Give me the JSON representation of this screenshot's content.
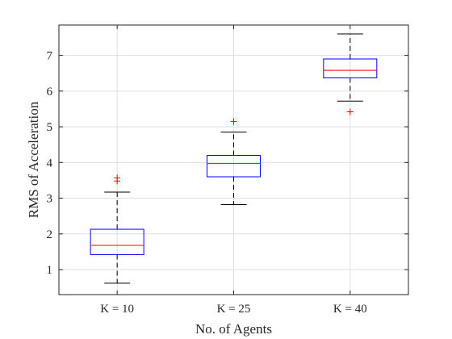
{
  "chart_data": {
    "type": "box",
    "title": "",
    "xlabel": "No. of Agents",
    "ylabel": "RMS of Acceleration",
    "categories": [
      "K = 10",
      "K = 25",
      "K = 40"
    ],
    "yticks": [
      1,
      2,
      3,
      4,
      5,
      6,
      7
    ],
    "ylim": [
      0.3,
      7.85
    ],
    "grid": true,
    "boxes": [
      {
        "label": "K = 10",
        "whisker_low": 0.62,
        "q1": 1.42,
        "median": 1.68,
        "q3": 2.13,
        "whisker_high": 3.17,
        "outliers": [
          3.48,
          3.57
        ]
      },
      {
        "label": "K = 25",
        "whisker_low": 2.82,
        "q1": 3.6,
        "median": 3.97,
        "q3": 4.2,
        "whisker_high": 4.85,
        "outliers": [
          5.15
        ]
      },
      {
        "label": "K = 40",
        "whisker_low": 5.72,
        "q1": 6.37,
        "median": 6.58,
        "q3": 6.9,
        "whisker_high": 7.6,
        "outliers": [
          5.42
        ]
      }
    ],
    "colors": {
      "box": "#0000ff",
      "median": "#ff0000",
      "whisker": "#000000",
      "outlier": "#ff0000",
      "grid": "#dfdfdf",
      "axis": "#262626"
    }
  }
}
